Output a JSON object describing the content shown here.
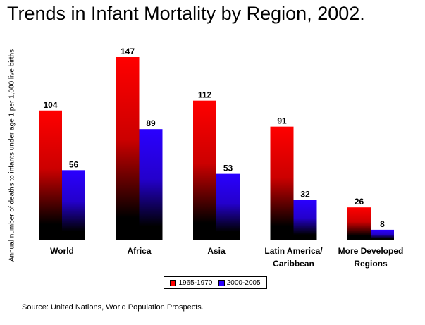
{
  "title": "Trends in Infant Mortality by Region, 2002.",
  "source": "Source: United Nations, World Population Prospects.",
  "colors": {
    "series1": "#ff0000",
    "series2": "#2a00ff",
    "fade": "#000000"
  },
  "chart_data": {
    "type": "bar",
    "title": "Trends in Infant Mortality by Region, 2002.",
    "ylabel": "Annual number of deaths to infants under age 1 per 1,000 live births",
    "xlabel": "",
    "categories": [
      [
        "World"
      ],
      [
        "Africa"
      ],
      [
        "Asia"
      ],
      [
        "Latin America/",
        "Caribbean"
      ],
      [
        "More Developed",
        "Regions"
      ]
    ],
    "series": [
      {
        "name": "1965-1970",
        "values": [
          104,
          147,
          112,
          91,
          26
        ]
      },
      {
        "name": "2000-2005",
        "values": [
          56,
          89,
          53,
          32,
          8
        ]
      }
    ],
    "ylim": [
      0,
      147
    ],
    "grid": false,
    "legend": "bottom"
  }
}
